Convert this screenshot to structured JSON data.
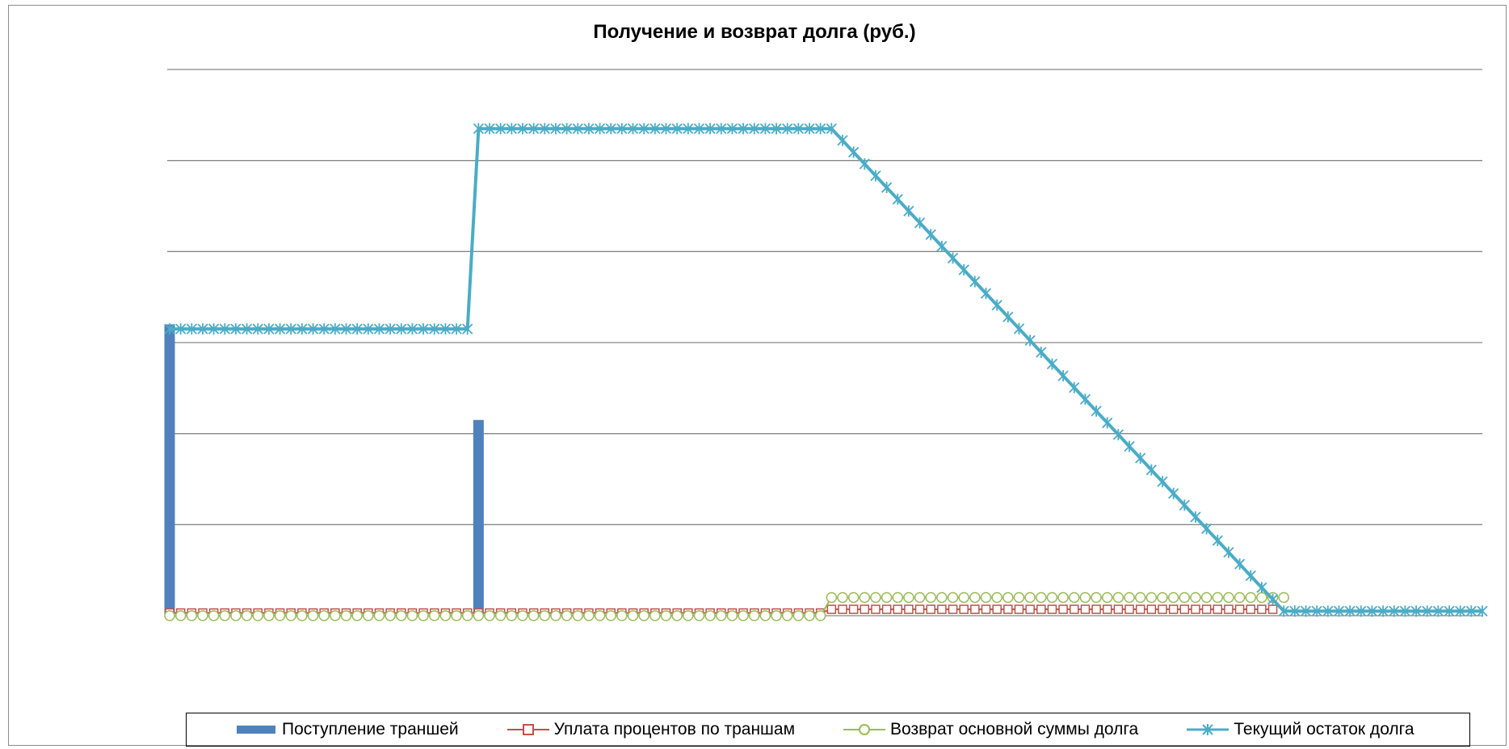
{
  "chart_data": {
    "type": "line",
    "title": "Получение и возврат долга (руб.)",
    "xlabel": "",
    "ylabel": "",
    "grid": true,
    "legend_position": "bottom",
    "periods": 120,
    "ylim": [
      0,
      6
    ],
    "series": [
      {
        "name": "Поступление траншей",
        "kind": "bar",
        "color": "#4f81bd",
        "points": [
          [
            1,
            3.2
          ],
          [
            29,
            2.15
          ]
        ]
      },
      {
        "name": "Уплата процентов по траншам",
        "kind": "line",
        "marker": "square",
        "color": "#c0504d",
        "segments": [
          {
            "from": 1,
            "to": 60,
            "value": 0.03
          },
          {
            "from": 61,
            "to": 101,
            "value": 0.07
          }
        ]
      },
      {
        "name": "Возврат основной суммы долга",
        "kind": "line",
        "marker": "circle",
        "color": "#9bbb59",
        "segments": [
          {
            "from": 1,
            "to": 60,
            "value": 0.0
          },
          {
            "from": 61,
            "to": 102,
            "value": 0.2
          }
        ]
      },
      {
        "name": "Текущий остаток долга",
        "kind": "line",
        "marker": "x",
        "color": "#4bacc6",
        "segments": [
          {
            "from": 1,
            "to": 28,
            "value": 3.15
          },
          {
            "from": 29,
            "to": 60,
            "value": 5.35
          },
          {
            "from": 61,
            "to": 102,
            "value_start": 5.35,
            "value_end": 0.05
          },
          {
            "from": 103,
            "to": 120,
            "value": 0.05
          }
        ]
      }
    ]
  },
  "legend": {
    "item1": "Поступление траншей",
    "item2": "Уплата процентов по траншам",
    "item3": "Возврат основной суммы долга",
    "item4": "Текущий остаток долга"
  }
}
